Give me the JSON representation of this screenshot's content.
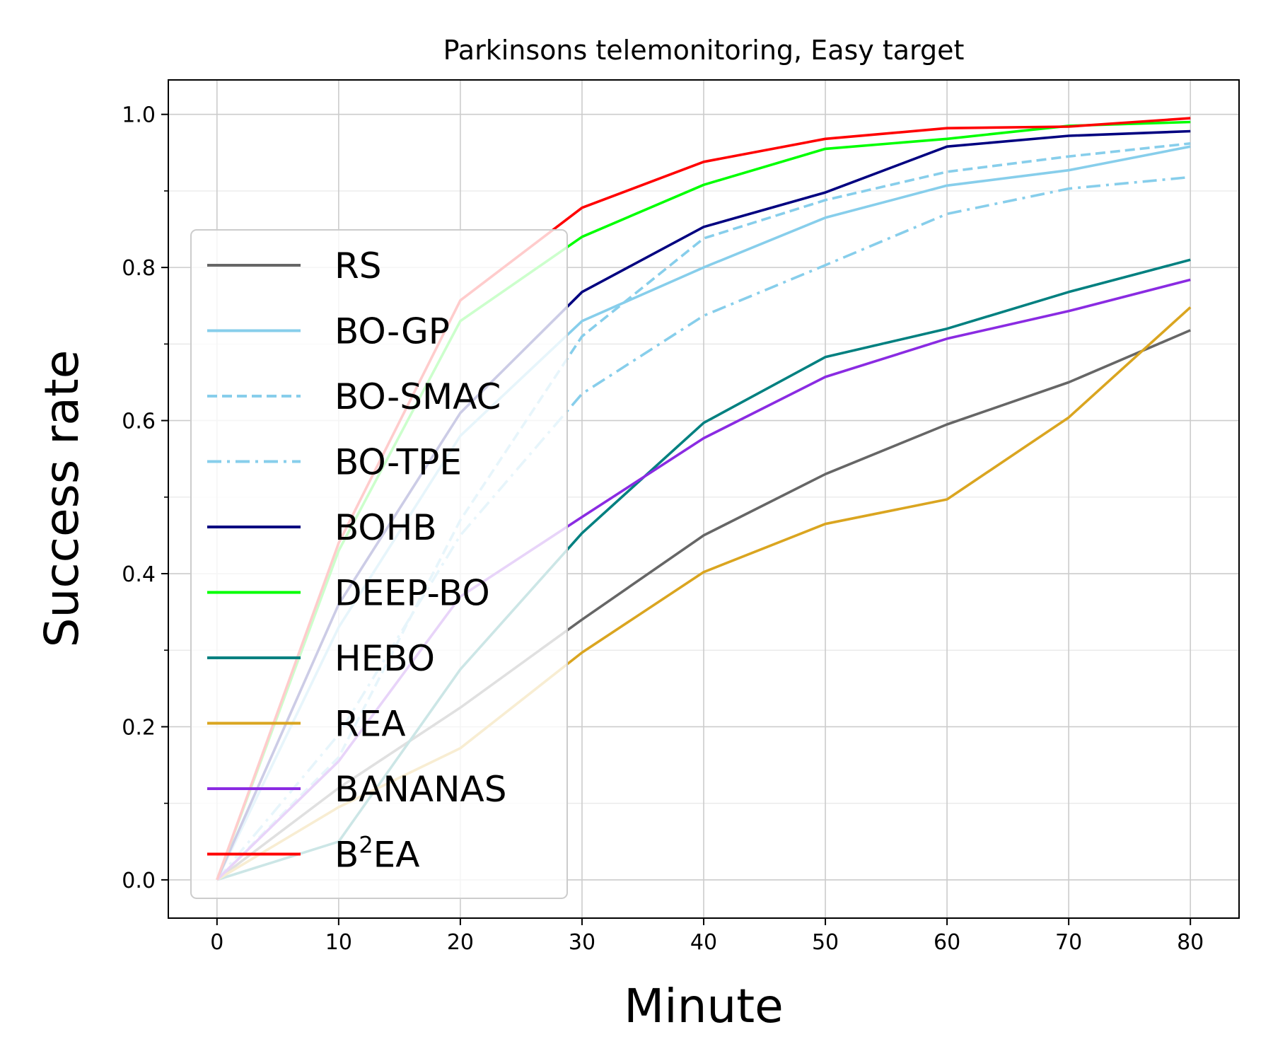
{
  "chart_data": {
    "type": "line",
    "title": "Parkinsons telemonitoring, Easy target",
    "xlabel": "Minute",
    "ylabel": "Success rate",
    "xlim": [
      -4,
      84
    ],
    "ylim": [
      -0.05,
      1.045
    ],
    "xticks": [
      0,
      10,
      20,
      30,
      40,
      50,
      60,
      70,
      80
    ],
    "yticks": [
      0.0,
      0.2,
      0.4,
      0.6,
      0.8,
      1.0
    ],
    "xtick_labels": [
      "0",
      "10",
      "20",
      "30",
      "40",
      "50",
      "60",
      "70",
      "80"
    ],
    "ytick_labels": [
      "0.0",
      "0.2",
      "0.4",
      "0.6",
      "0.8",
      "1.0"
    ],
    "grid": true,
    "legend_position": "center-left",
    "x": [
      0,
      10,
      20,
      30,
      40,
      50,
      60,
      70,
      80
    ],
    "series": [
      {
        "name": "RS",
        "color": "#666666",
        "dash": "solid",
        "values": [
          0.0,
          0.12,
          0.225,
          0.34,
          0.45,
          0.53,
          0.595,
          0.65,
          0.718
        ]
      },
      {
        "name": "BO-GP",
        "color": "#87ceeb",
        "dash": "solid",
        "values": [
          0.0,
          0.33,
          0.58,
          0.73,
          0.8,
          0.865,
          0.907,
          0.927,
          0.958
        ]
      },
      {
        "name": "BO-SMAC",
        "color": "#87ceeb",
        "dash": "dashed",
        "values": [
          0.0,
          0.16,
          0.47,
          0.71,
          0.838,
          0.888,
          0.925,
          0.945,
          0.962
        ]
      },
      {
        "name": "BO-TPE",
        "color": "#87ceeb",
        "dash": "dashdot",
        "values": [
          0.0,
          0.19,
          0.45,
          0.635,
          0.737,
          0.803,
          0.87,
          0.903,
          0.918
        ]
      },
      {
        "name": "BOHB",
        "color": "#000080",
        "dash": "solid",
        "values": [
          0.0,
          0.36,
          0.61,
          0.768,
          0.853,
          0.898,
          0.958,
          0.972,
          0.978
        ]
      },
      {
        "name": "DEEP-BO",
        "color": "#00ff00",
        "dash": "solid",
        "values": [
          0.0,
          0.43,
          0.73,
          0.84,
          0.908,
          0.955,
          0.968,
          0.985,
          0.99
        ]
      },
      {
        "name": "HEBO",
        "color": "#008080",
        "dash": "solid",
        "values": [
          0.0,
          0.05,
          0.275,
          0.453,
          0.597,
          0.683,
          0.72,
          0.768,
          0.81
        ]
      },
      {
        "name": "REA",
        "color": "#daa520",
        "dash": "solid",
        "values": [
          0.0,
          0.095,
          0.172,
          0.297,
          0.402,
          0.465,
          0.497,
          0.604,
          0.748
        ]
      },
      {
        "name": "BANANAS",
        "color": "#8a2be2",
        "dash": "solid",
        "values": [
          0.0,
          0.155,
          0.37,
          0.474,
          0.577,
          0.657,
          0.707,
          0.743,
          0.784
        ]
      },
      {
        "name": "B2EA",
        "label_base": "B",
        "label_sup": "2",
        "label_tail": "EA",
        "color": "#ff0000",
        "dash": "solid",
        "values": [
          0.0,
          0.44,
          0.757,
          0.878,
          0.938,
          0.968,
          0.982,
          0.984,
          0.995
        ]
      }
    ]
  }
}
